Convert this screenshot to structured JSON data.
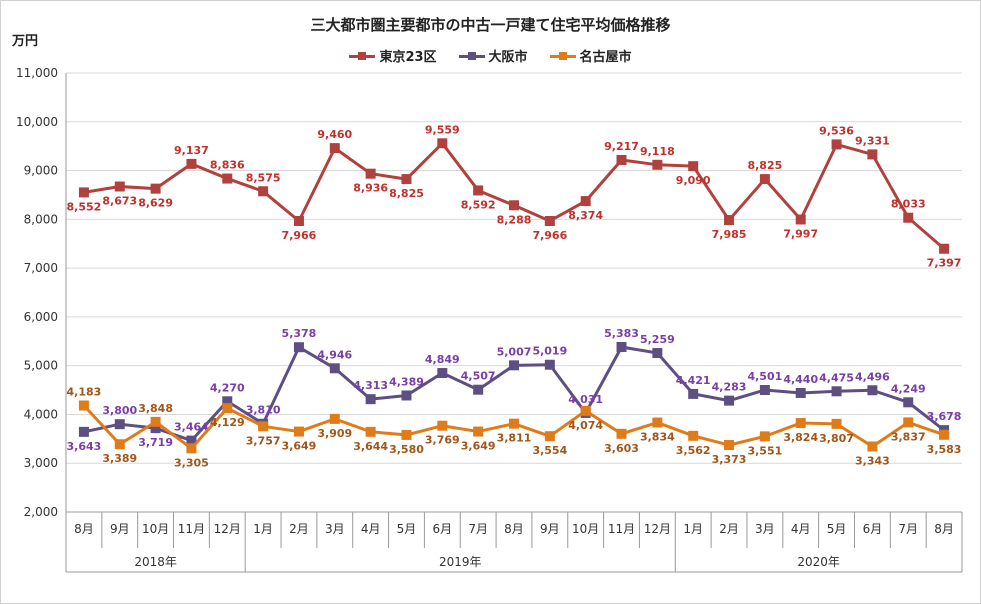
{
  "chart_data": {
    "type": "line",
    "title": "三大都市圏主要都市の中古一戸建て住宅平均価格推移",
    "ylabel": "万円",
    "ylim": [
      2000,
      11000
    ],
    "yticks": [
      "2,000",
      "3,000",
      "4,000",
      "5,000",
      "6,000",
      "7,000",
      "8,000",
      "9,000",
      "10,000",
      "11,000"
    ],
    "ytick_values": [
      2000,
      3000,
      4000,
      5000,
      6000,
      7000,
      8000,
      9000,
      10000,
      11000
    ],
    "categories": [
      "8月",
      "9月",
      "10月",
      "11月",
      "12月",
      "1月",
      "2月",
      "3月",
      "4月",
      "5月",
      "6月",
      "7月",
      "8月",
      "9月",
      "10月",
      "11月",
      "12月",
      "1月",
      "2月",
      "3月",
      "4月",
      "5月",
      "6月",
      "7月",
      "8月"
    ],
    "years": [
      {
        "label": "2018年",
        "start": 0,
        "end": 4
      },
      {
        "label": "2019年",
        "start": 5,
        "end": 16
      },
      {
        "label": "2020年",
        "start": 17,
        "end": 24
      }
    ],
    "series": [
      {
        "name": "東京23区",
        "color": "#b0413e",
        "label_color": "#c0302c",
        "marker": "square",
        "values": [
          8552,
          8673,
          8629,
          9137,
          8836,
          8575,
          7966,
          9460,
          8936,
          8825,
          9559,
          8592,
          8288,
          7966,
          8374,
          9217,
          9118,
          9090,
          7985,
          8825,
          7997,
          9536,
          9331,
          8033,
          7397
        ],
        "labels": [
          "8,552",
          "8,673",
          "8,629",
          "9,137",
          "8,836",
          "8,575",
          "7,966",
          "9,460",
          "8,936",
          "8,825",
          "9,559",
          "8,592",
          "8,288",
          "7,966",
          "8,374",
          "9,217",
          "9,118",
          "9,090",
          "7,985",
          "8,825",
          "7,997",
          "9,536",
          "9,331",
          "8,033",
          "7,397"
        ]
      },
      {
        "name": "大阪市",
        "color": "#5e4f82",
        "label_color": "#7a3fa6",
        "marker": "square",
        "values": [
          3643,
          3800,
          3719,
          3464,
          4270,
          3810,
          5378,
          4946,
          4313,
          4389,
          4849,
          4507,
          5007,
          5019,
          4031,
          5383,
          5259,
          4421,
          4283,
          4501,
          4440,
          4475,
          4496,
          4249,
          3678
        ],
        "labels": [
          "3,643",
          "3,800",
          "3,719",
          "3,464",
          "4,270",
          "3,810",
          "5,378",
          "4,946",
          "4,313",
          "4,389",
          "4,849",
          "4,507",
          "5,007",
          "5,019",
          "4,031",
          "5,383",
          "5,259",
          "4,421",
          "4,283",
          "4,501",
          "4,440",
          "4,475",
          "4,496",
          "4,249",
          "3,678"
        ]
      },
      {
        "name": "名古屋市",
        "color": "#e07b1a",
        "label_color": "#a0561a",
        "marker": "square",
        "values": [
          4183,
          3389,
          3848,
          3305,
          4129,
          3757,
          3649,
          3909,
          3644,
          3580,
          3769,
          3649,
          3811,
          3554,
          4074,
          3603,
          3834,
          3562,
          3373,
          3551,
          3824,
          3807,
          3343,
          3837,
          3583
        ],
        "labels": [
          "4,183",
          "3,389",
          "3,848",
          "3,305",
          "4,129",
          "3,757",
          "3,649",
          "3,909",
          "3,644",
          "3,580",
          "3,769",
          "3,649",
          "3,811",
          "3,554",
          "4,074",
          "3,603",
          "3,834",
          "3,562",
          "3,373",
          "3,551",
          "3,824",
          "3,807",
          "3,343",
          "3,837",
          "3,583"
        ]
      }
    ]
  }
}
